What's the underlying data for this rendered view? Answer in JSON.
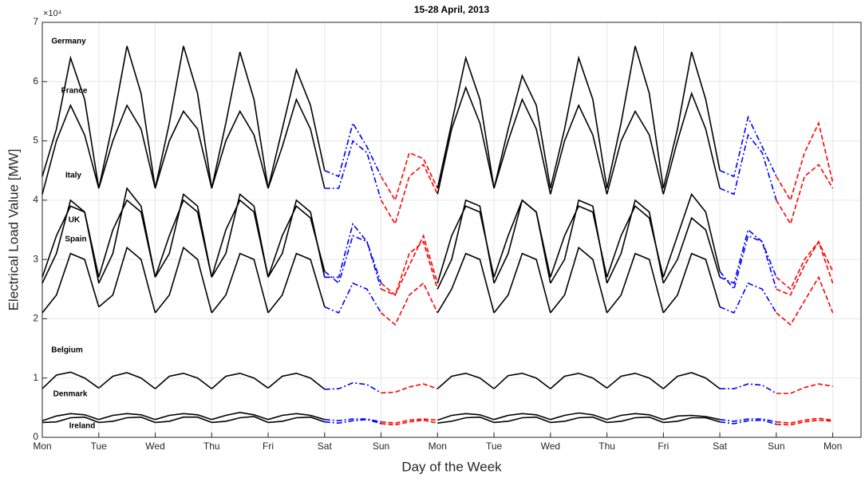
{
  "chart_data": {
    "type": "line",
    "title": "15-28 April, 2013",
    "x_label": "Day of the Week",
    "y_label": "Electrical Load Value [MW]",
    "y_exponent": "×10⁴",
    "xlim": [
      0,
      14.5
    ],
    "ylim": [
      0,
      70000
    ],
    "grid": true,
    "xticks": [
      {
        "value": 0,
        "label": "Mon"
      },
      {
        "value": 1,
        "label": "Tue"
      },
      {
        "value": 2,
        "label": "Wed"
      },
      {
        "value": 3,
        "label": "Thu"
      },
      {
        "value": 4,
        "label": "Fri"
      },
      {
        "value": 5,
        "label": "Sat"
      },
      {
        "value": 6,
        "label": "Sun"
      },
      {
        "value": 7,
        "label": "Mon"
      },
      {
        "value": 8,
        "label": "Tue"
      },
      {
        "value": 9,
        "label": "Wed"
      },
      {
        "value": 10,
        "label": "Thu"
      },
      {
        "value": 11,
        "label": "Fri"
      },
      {
        "value": 12,
        "label": "Sat"
      },
      {
        "value": 13,
        "label": "Sun"
      },
      {
        "value": 14,
        "label": "Mon"
      }
    ],
    "yticks": [
      0,
      {
        "value": 10000,
        "label": "1"
      },
      {
        "value": 20000,
        "label": "2"
      },
      {
        "value": 30000,
        "label": "3"
      },
      {
        "value": 40000,
        "label": "4"
      },
      {
        "value": 50000,
        "label": "5"
      },
      {
        "value": 60000,
        "label": "6"
      },
      {
        "value": 70000,
        "label": "7"
      }
    ],
    "segment_colors": [
      "#000000",
      "#000000",
      "#000000",
      "#000000",
      "#000000",
      "#0000ff",
      "#ff0000",
      "#000000",
      "#000000",
      "#000000",
      "#000000",
      "#000000",
      "#0000ff",
      "#ff0000"
    ],
    "segment_dash": [
      "solid",
      "solid",
      "solid",
      "solid",
      "solid",
      "dashdot",
      "dashed",
      "solid",
      "solid",
      "solid",
      "solid",
      "solid",
      "dashdot",
      "dashed"
    ],
    "x": [
      0,
      0.25,
      0.5,
      0.75,
      1,
      1.25,
      1.5,
      1.75,
      2,
      2.25,
      2.5,
      2.75,
      3,
      3.25,
      3.5,
      3.75,
      4,
      4.25,
      4.5,
      4.75,
      5,
      5.25,
      5.5,
      5.75,
      6,
      6.25,
      6.5,
      6.75,
      7,
      7.25,
      7.5,
      7.75,
      8,
      8.25,
      8.5,
      8.75,
      9,
      9.25,
      9.5,
      9.75,
      10,
      10.25,
      10.5,
      10.75,
      11,
      11.25,
      11.5,
      11.75,
      12,
      12.25,
      12.5,
      12.75,
      13,
      13.25,
      13.5,
      13.75,
      14
    ],
    "series": [
      {
        "name": "Germany",
        "values": [
          44000,
          52000,
          64000,
          57000,
          42000,
          53000,
          66000,
          58000,
          42000,
          53000,
          66000,
          58000,
          42000,
          53000,
          65000,
          57000,
          42000,
          52000,
          62000,
          56000,
          45000,
          44000,
          53000,
          49000,
          44000,
          40000,
          48000,
          47000,
          42000,
          53000,
          64000,
          57000,
          42000,
          52000,
          61000,
          56000,
          42000,
          52000,
          64000,
          57000,
          42000,
          53000,
          66000,
          58000,
          42000,
          52000,
          65000,
          57000,
          45000,
          44000,
          54000,
          49000,
          44000,
          40000,
          48000,
          53000,
          43000
        ]
      },
      {
        "name": "France",
        "values": [
          41000,
          50000,
          56000,
          51000,
          42000,
          50000,
          56000,
          52000,
          42000,
          50000,
          55000,
          52000,
          42000,
          50000,
          55000,
          51000,
          42000,
          49000,
          57000,
          52000,
          42000,
          42000,
          50000,
          48000,
          40000,
          36000,
          44000,
          46000,
          41000,
          52000,
          59000,
          53000,
          42000,
          50000,
          57000,
          52000,
          41000,
          50000,
          56000,
          51000,
          41000,
          50000,
          55000,
          51000,
          41000,
          50000,
          58000,
          52000,
          42000,
          41000,
          51000,
          48000,
          40000,
          36000,
          44000,
          46000,
          42000
        ]
      },
      {
        "name": "Italy",
        "values": [
          26000,
          31000,
          40000,
          38000,
          26000,
          31000,
          42000,
          39000,
          27000,
          31000,
          41000,
          39000,
          27000,
          31000,
          41000,
          39000,
          27000,
          31000,
          40000,
          38000,
          27000,
          27000,
          36000,
          33000,
          26000,
          24000,
          31000,
          33000,
          25000,
          30000,
          40000,
          39000,
          26000,
          31000,
          40000,
          38000,
          26000,
          30000,
          40000,
          39000,
          26000,
          31000,
          40000,
          38000,
          26000,
          30000,
          37000,
          35000,
          27000,
          26000,
          35000,
          33000,
          27000,
          25000,
          30000,
          33000,
          28000
        ]
      },
      {
        "name": "UK",
        "values": [
          27000,
          34000,
          39000,
          38000,
          27000,
          35000,
          40000,
          38000,
          27000,
          34000,
          40000,
          38000,
          27000,
          35000,
          40000,
          38000,
          27000,
          34000,
          39000,
          37000,
          28000,
          26000,
          34000,
          33000,
          25000,
          24000,
          29000,
          34000,
          26000,
          34000,
          39000,
          38000,
          27000,
          34000,
          40000,
          38000,
          27000,
          34000,
          39000,
          38000,
          27000,
          34000,
          39000,
          37000,
          27000,
          34000,
          41000,
          38000,
          28000,
          25000,
          34000,
          33000,
          25000,
          24000,
          29000,
          33000,
          26000
        ]
      },
      {
        "name": "Spain",
        "values": [
          21000,
          24000,
          31000,
          30000,
          22000,
          24000,
          32000,
          30000,
          21000,
          24000,
          32000,
          30000,
          21000,
          24000,
          31000,
          30000,
          21000,
          24000,
          31000,
          30000,
          22000,
          21000,
          26000,
          25000,
          21000,
          19000,
          24000,
          26000,
          21000,
          25000,
          31000,
          30000,
          21000,
          24000,
          31000,
          30000,
          21000,
          24000,
          32000,
          30000,
          21000,
          24000,
          31000,
          30000,
          21000,
          24000,
          31000,
          30000,
          22000,
          21000,
          26000,
          25000,
          21000,
          19000,
          23000,
          27000,
          21000
        ]
      },
      {
        "name": "Belgium",
        "values": [
          8200,
          10500,
          11000,
          10000,
          8300,
          10300,
          10900,
          10000,
          8200,
          10300,
          10800,
          10000,
          8200,
          10300,
          10800,
          10000,
          8300,
          10300,
          10800,
          10000,
          8100,
          8200,
          9200,
          8900,
          7500,
          7600,
          8500,
          9000,
          8200,
          10300,
          10800,
          10000,
          8200,
          10400,
          10800,
          10000,
          8200,
          10300,
          10800,
          10000,
          8300,
          10300,
          10800,
          10000,
          8200,
          10300,
          10900,
          10000,
          8200,
          8200,
          9000,
          8800,
          7400,
          7400,
          8400,
          9000,
          8600
        ]
      },
      {
        "name": "Denmark",
        "values": [
          2800,
          3600,
          4000,
          3800,
          3000,
          3700,
          4000,
          3800,
          3000,
          3700,
          4000,
          3800,
          3000,
          3700,
          4200,
          3800,
          3000,
          3700,
          4000,
          3700,
          3000,
          2800,
          3100,
          3100,
          2600,
          2400,
          2900,
          3100,
          2900,
          3700,
          4000,
          3800,
          3000,
          3700,
          4000,
          3800,
          3000,
          3700,
          4100,
          3800,
          3000,
          3700,
          4000,
          3800,
          3000,
          3600,
          3700,
          3500,
          3000,
          2700,
          3100,
          3100,
          2600,
          2400,
          2900,
          3200,
          2900
        ]
      },
      {
        "name": "Ireland",
        "values": [
          2500,
          2600,
          3300,
          3400,
          2500,
          2700,
          3300,
          3400,
          2500,
          2700,
          3400,
          3400,
          2500,
          2700,
          3300,
          3500,
          2500,
          2700,
          3300,
          3400,
          2600,
          2400,
          2800,
          3000,
          2300,
          2100,
          2600,
          2900,
          2400,
          2700,
          3300,
          3400,
          2500,
          2700,
          3300,
          3400,
          2500,
          2700,
          3300,
          3400,
          2500,
          2700,
          3300,
          3400,
          2500,
          2700,
          3300,
          3300,
          2600,
          2300,
          2800,
          2900,
          2200,
          2100,
          2600,
          2900,
          2700
        ]
      }
    ]
  }
}
